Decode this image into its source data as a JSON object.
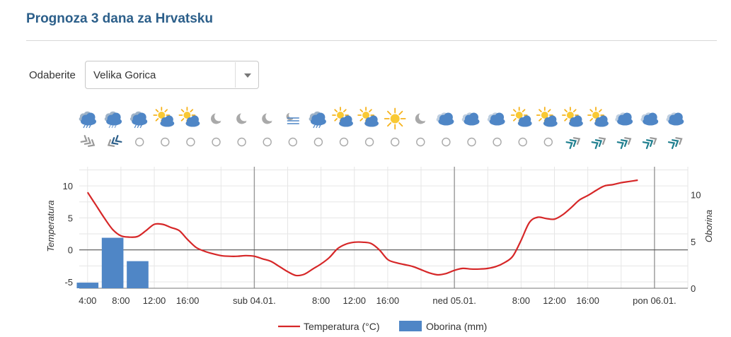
{
  "page": {
    "title": "Prognoza 3 dana za Hrvatsku"
  },
  "selector": {
    "label": "Odaberite",
    "value": "Velika Gorica"
  },
  "icons": {
    "weather": [
      "rain-cloud",
      "snow-rain-cloud",
      "rain-cloud",
      "partly-sunny",
      "partly-sunny",
      "moon",
      "moon",
      "moon",
      "fog",
      "rain-cloud",
      "partly-sunny",
      "partly-sunny",
      "sun",
      "moon",
      "cloudy",
      "cloudy",
      "cloudy",
      "partly-sunny",
      "partly-sunny",
      "partly-sunny",
      "partly-sunny",
      "cloudy",
      "cloudy",
      "cloudy"
    ],
    "wind": [
      "wind-nw",
      "wind-sw",
      "calm",
      "calm",
      "calm",
      "calm",
      "calm",
      "calm",
      "calm",
      "calm",
      "calm",
      "calm",
      "calm",
      "calm",
      "calm",
      "calm",
      "calm",
      "calm",
      "calm",
      "wind-ne",
      "wind-ne",
      "wind-ne",
      "wind-ne",
      "wind-ne"
    ]
  },
  "chart_data": {
    "type": "line",
    "x_ticks": [
      "4:00",
      "8:00",
      "12:00",
      "16:00",
      "sub 04.01.",
      "8:00",
      "12:00",
      "16:00",
      "ned 05.01.",
      "8:00",
      "12:00",
      "16:00",
      "pon 06.01."
    ],
    "left_axis": {
      "label": "Temperatura",
      "ticks": [
        10,
        5,
        0,
        -5
      ],
      "range": [
        -6,
        13
      ]
    },
    "right_axis": {
      "label": "Oborina",
      "ticks": [
        10,
        5,
        0
      ],
      "range": [
        0,
        13
      ]
    },
    "hours": [
      4,
      5,
      6,
      7,
      8,
      9,
      10,
      11,
      12,
      13,
      14,
      15,
      16,
      17,
      18,
      19,
      20,
      21,
      22,
      23,
      24,
      25,
      26,
      27,
      28,
      29,
      30,
      31,
      32,
      33,
      34,
      35,
      36,
      37,
      38,
      39,
      40,
      41,
      42,
      43,
      44,
      45,
      46,
      47,
      48,
      49,
      50,
      51,
      52,
      53,
      54,
      55,
      56,
      57,
      58,
      59,
      60,
      61,
      62,
      63,
      64,
      65,
      66,
      67,
      68,
      69,
      70,
      71,
      72,
      73,
      74,
      75
    ],
    "series": [
      {
        "name": "Temperatura (°C)",
        "type": "line",
        "color": "#d62728",
        "values": [
          9,
          7,
          5,
          3.2,
          2.2,
          2,
          2.1,
          3,
          4,
          4,
          3.5,
          3,
          1.6,
          0.4,
          -0.2,
          -0.6,
          -0.9,
          -1,
          -1,
          -0.9,
          -1,
          -1.4,
          -1.8,
          -2.6,
          -3.4,
          -4,
          -3.8,
          -3,
          -2.2,
          -1.2,
          0.2,
          0.9,
          1.2,
          1.2,
          1,
          0,
          -1.5,
          -2,
          -2.3,
          -2.6,
          -3.1,
          -3.6,
          -3.9,
          -3.7,
          -3.2,
          -2.9,
          -3,
          -3,
          -2.9,
          -2.6,
          -2,
          -1,
          1.5,
          4.3,
          5.1,
          4.9,
          4.8,
          5.5,
          6.6,
          7.8,
          8.5,
          9.3,
          10,
          10.2,
          10.5,
          10.7,
          10.9
        ],
        "x_start": 4
      },
      {
        "name": "Oborina (mm)",
        "type": "bar",
        "color": "#4f86c6",
        "x": [
          4,
          7,
          10
        ],
        "values": [
          0.6,
          5.4,
          2.9
        ],
        "bar_width_hours": 2.6
      }
    ],
    "legend_position": "bottom",
    "grid": true
  }
}
